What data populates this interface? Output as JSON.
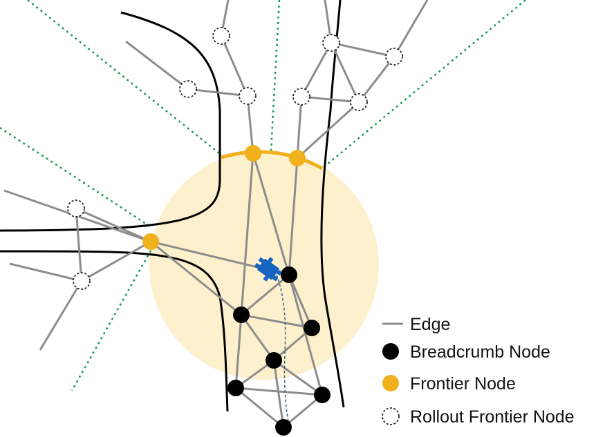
{
  "diagram": {
    "colors": {
      "background": "#ffffff",
      "edge": "#8c8c8c",
      "breadcrumb": "#000000",
      "frontier": "#f0b11c",
      "rollout_outline": "#222222",
      "rollout_fill": "#ffffff",
      "wall": "#000000",
      "sensor_region": "#fdf0cc",
      "sensor_boundary": "#f0b11c",
      "ray": "#1a9e5a",
      "robot": "#1565c0",
      "path": "#355f84"
    },
    "robot": {
      "icon": "robot-icon"
    }
  },
  "legend": {
    "edge": "Edge",
    "breadcrumb": "Breadcrumb Node",
    "frontier": "Frontier Node",
    "rollout": "Rollout Frontier Node"
  }
}
